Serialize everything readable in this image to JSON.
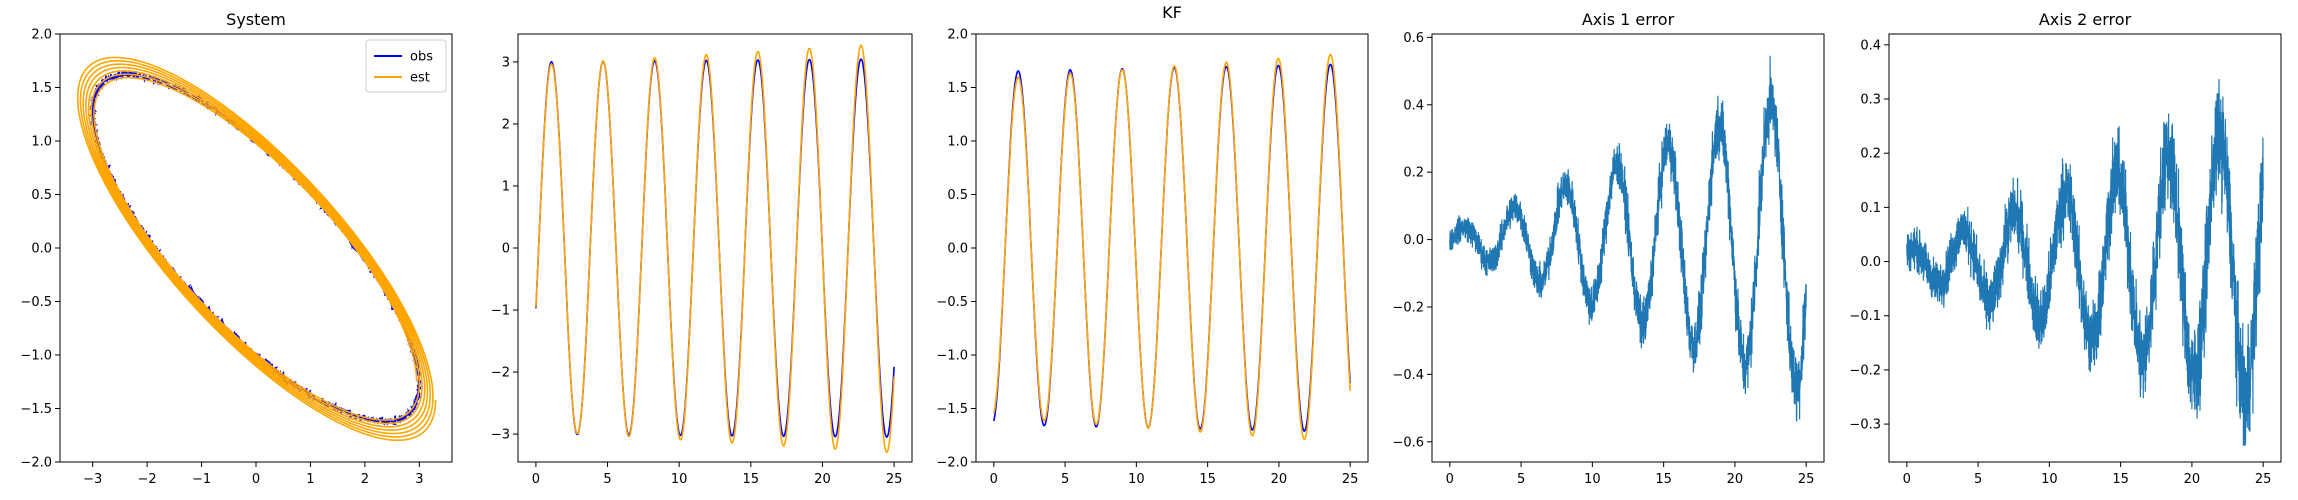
{
  "figure": {
    "background": "#ffffff"
  },
  "colors": {
    "obs": "#0000ff",
    "est": "#ffa500",
    "error": "#1f77b4"
  },
  "chart_data": [
    {
      "type": "line",
      "title": "System",
      "xlim": [
        -3.6,
        3.6
      ],
      "ylim": [
        -2.0,
        2.0
      ],
      "xticks": [
        -3,
        -2,
        -1,
        0,
        1,
        2,
        3
      ],
      "yticks": [
        -2.0,
        -1.5,
        -1.0,
        -0.5,
        0.0,
        0.5,
        1.0,
        1.5,
        2.0
      ],
      "legend": {
        "position": "top-right",
        "entries": [
          "obs",
          "est"
        ]
      },
      "series": [
        {
          "name": "obs",
          "kind": "noisy-ellipse",
          "x_amplitude": 3.0,
          "y_amplitude": 1.62,
          "phase_shift_deg": 38,
          "noise": 0.03
        },
        {
          "name": "est",
          "kind": "spiral-ellipse",
          "x_amplitude_start": 2.95,
          "x_amplitude_end": 3.3,
          "y_amplitude_start": 1.58,
          "y_amplitude_end": 1.8,
          "phase_shift_deg": 38,
          "turns": 7
        }
      ]
    },
    {
      "type": "line",
      "title": "",
      "xlim": [
        -1.25,
        26.25
      ],
      "ylim": [
        -3.45,
        3.45
      ],
      "xticks": [
        0,
        5,
        10,
        15,
        20,
        25
      ],
      "yticks": [
        -3,
        -2,
        -1,
        0,
        1,
        2,
        3
      ],
      "series": [
        {
          "name": "",
          "color_key": "obs",
          "kind": "sine",
          "amplitude_start": 3.0,
          "amplitude_end": 3.05,
          "period": 3.6,
          "phase": -0.33,
          "t_end": 25
        },
        {
          "name": "",
          "color_key": "est",
          "kind": "sine",
          "amplitude_start": 2.95,
          "amplitude_end": 3.3,
          "period": 3.6,
          "phase": -0.33,
          "t_end": 25
        }
      ]
    },
    {
      "type": "line",
      "title": "KF",
      "xlim": [
        -1.25,
        26.25
      ],
      "ylim": [
        -2.0,
        2.0
      ],
      "xticks": [
        0,
        5,
        10,
        15,
        20,
        25
      ],
      "yticks": [
        -2.0,
        -1.5,
        -1.0,
        -0.5,
        0.0,
        0.5,
        1.0,
        1.5,
        2.0
      ],
      "series": [
        {
          "name": "",
          "color_key": "obs",
          "kind": "cosine",
          "amplitude_start": 1.65,
          "amplitude_end": 1.72,
          "period": 3.65,
          "phase": 0.2,
          "t_end": 25
        },
        {
          "name": "",
          "color_key": "est",
          "kind": "cosine",
          "amplitude_start": 1.58,
          "amplitude_end": 1.82,
          "period": 3.65,
          "phase": 0.2,
          "t_end": 25
        }
      ]
    },
    {
      "type": "line",
      "title": "Axis 1 error",
      "xlim": [
        -1.25,
        26.25
      ],
      "ylim": [
        -0.66,
        0.61
      ],
      "xticks": [
        0,
        5,
        10,
        15,
        20,
        25
      ],
      "yticks": [
        -0.6,
        -0.4,
        -0.2,
        0.0,
        0.2,
        0.4,
        0.6
      ],
      "series": [
        {
          "name": "",
          "color_key": "error",
          "kind": "noisy-growing-sine",
          "amplitude_start": 0.02,
          "amplitude_end": 0.45,
          "period": 3.6,
          "phase": 0.0,
          "noise": 0.06,
          "t_end": 25,
          "min": -0.61,
          "max": 0.55
        }
      ]
    },
    {
      "type": "line",
      "title": "Axis 2 error",
      "xlim": [
        -1.25,
        26.25
      ],
      "ylim": [
        -0.37,
        0.42
      ],
      "xticks": [
        0,
        5,
        10,
        15,
        20,
        25
      ],
      "yticks": [
        -0.3,
        -0.2,
        -0.1,
        0.0,
        0.1,
        0.2,
        0.3,
        0.4
      ],
      "series": [
        {
          "name": "",
          "color_key": "error",
          "kind": "noisy-growing-sine",
          "amplitude_start": 0.02,
          "amplitude_end": 0.26,
          "period": 3.6,
          "phase": 1.0,
          "noise": 0.06,
          "t_end": 25,
          "min": -0.34,
          "max": 0.38
        }
      ]
    }
  ]
}
